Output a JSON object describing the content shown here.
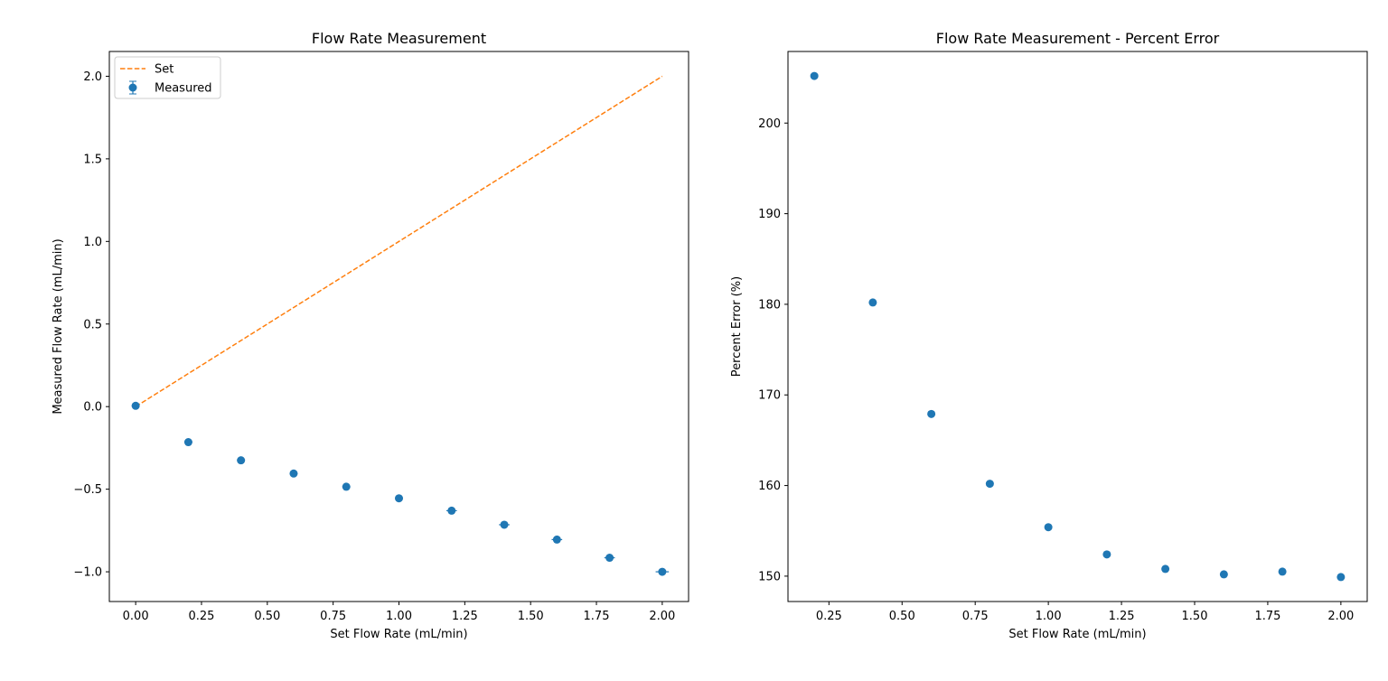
{
  "chart_data": [
    {
      "type": "scatter",
      "title": "Flow Rate Measurement",
      "xlabel": "Set Flow Rate (mL/min)",
      "ylabel": "Measured Flow Rate (mL/min)",
      "xlim": [
        -0.1,
        2.1
      ],
      "ylim": [
        -1.18,
        2.15
      ],
      "xticks": [
        "0.00",
        "0.25",
        "0.50",
        "0.75",
        "1.00",
        "1.25",
        "1.50",
        "1.75",
        "2.00"
      ],
      "yticks": [
        "−1.0",
        "−0.5",
        "0.0",
        "0.5",
        "1.0",
        "1.5",
        "2.0"
      ],
      "legend": {
        "location": "upper left"
      },
      "series": [
        {
          "name": "Set",
          "kind": "line",
          "style": "dashed",
          "color": "#ff7f0e",
          "x": [
            0.0,
            2.0
          ],
          "y": [
            0.0,
            2.0
          ]
        },
        {
          "name": "Measured",
          "kind": "errorbar",
          "color": "#1f77b4",
          "x": [
            0.0,
            0.2,
            0.4,
            0.6,
            0.8,
            1.0,
            1.2,
            1.4,
            1.6,
            1.8,
            2.0
          ],
          "y": [
            0.005,
            -0.215,
            -0.325,
            -0.405,
            -0.485,
            -0.555,
            -0.63,
            -0.715,
            -0.805,
            -0.915,
            -1.0
          ],
          "yerr": [
            0.005,
            0.005,
            0.005,
            0.005,
            0.005,
            0.005,
            0.008,
            0.008,
            0.008,
            0.008,
            0.01
          ],
          "xerr": [
            0.015,
            0.015,
            0.015,
            0.015,
            0.015,
            0.015,
            0.02,
            0.02,
            0.02,
            0.02,
            0.025
          ]
        }
      ]
    },
    {
      "type": "scatter",
      "title": "Flow Rate Measurement - Percent Error",
      "xlabel": "Set Flow Rate (mL/min)",
      "ylabel": "Percent Error (%)",
      "xlim": [
        0.11,
        2.09
      ],
      "ylim": [
        147.2,
        207.9
      ],
      "xticks": [
        "0.25",
        "0.50",
        "0.75",
        "1.00",
        "1.25",
        "1.50",
        "1.75",
        "2.00"
      ],
      "yticks": [
        "150",
        "160",
        "170",
        "180",
        "190",
        "200"
      ],
      "series": [
        {
          "name": "",
          "kind": "points",
          "color": "#1f77b4",
          "x": [
            0.2,
            0.4,
            0.6,
            0.8,
            1.0,
            1.2,
            1.4,
            1.6,
            1.8,
            2.0
          ],
          "y": [
            205.2,
            180.2,
            167.9,
            160.2,
            155.4,
            152.4,
            150.8,
            150.2,
            150.5,
            149.9
          ]
        }
      ]
    }
  ]
}
